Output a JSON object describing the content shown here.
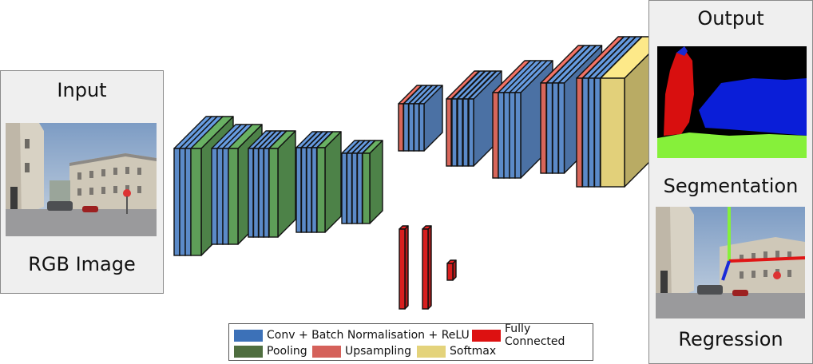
{
  "input": {
    "title": "Input",
    "caption": "RGB Image"
  },
  "output": {
    "title": "Output",
    "segmentation_label": "Segmentation",
    "regression_label": "Regression"
  },
  "colors": {
    "conv": "#5b8ac8",
    "pool": "#5e9e58",
    "upsample": "#d8665a",
    "fc": "#d81f1f",
    "softmax": "#e2d07a",
    "outline": "#111111"
  },
  "legend": [
    {
      "label": "Conv + Batch Normalisation + ReLU",
      "color": "#3c71b8"
    },
    {
      "label": "Fully Connected",
      "color": "#dd1111"
    },
    {
      "label": "Pooling",
      "color": "#4f6e3f"
    },
    {
      "label": "Upsampling",
      "color": "#d5615a"
    },
    {
      "label": "Softmax",
      "color": "#e4d37b"
    }
  ],
  "encoder": [
    {
      "stage": 1,
      "layers": [
        "conv",
        "conv",
        "conv",
        "pool"
      ]
    },
    {
      "stage": 2,
      "layers": [
        "conv",
        "conv",
        "conv",
        "pool"
      ]
    },
    {
      "stage": 3,
      "layers": [
        "conv",
        "conv",
        "conv",
        "conv",
        "pool"
      ]
    },
    {
      "stage": 4,
      "layers": [
        "conv",
        "conv",
        "conv",
        "conv",
        "pool"
      ]
    },
    {
      "stage": 5,
      "layers": [
        "conv",
        "conv",
        "conv",
        "conv",
        "pool"
      ]
    }
  ],
  "decoder": [
    {
      "stage": 1,
      "layers": [
        "upsample",
        "conv",
        "conv",
        "conv",
        "conv"
      ]
    },
    {
      "stage": 2,
      "layers": [
        "upsample",
        "conv",
        "conv",
        "conv",
        "conv"
      ]
    },
    {
      "stage": 3,
      "layers": [
        "upsample",
        "conv",
        "conv",
        "conv",
        "conv"
      ]
    },
    {
      "stage": 4,
      "layers": [
        "upsample",
        "conv",
        "conv",
        "conv"
      ]
    },
    {
      "stage": 5,
      "layers": [
        "upsample",
        "conv",
        "conv",
        "conv",
        "softmax"
      ]
    }
  ],
  "regression_head": [
    "fc",
    "fc",
    "fc"
  ]
}
